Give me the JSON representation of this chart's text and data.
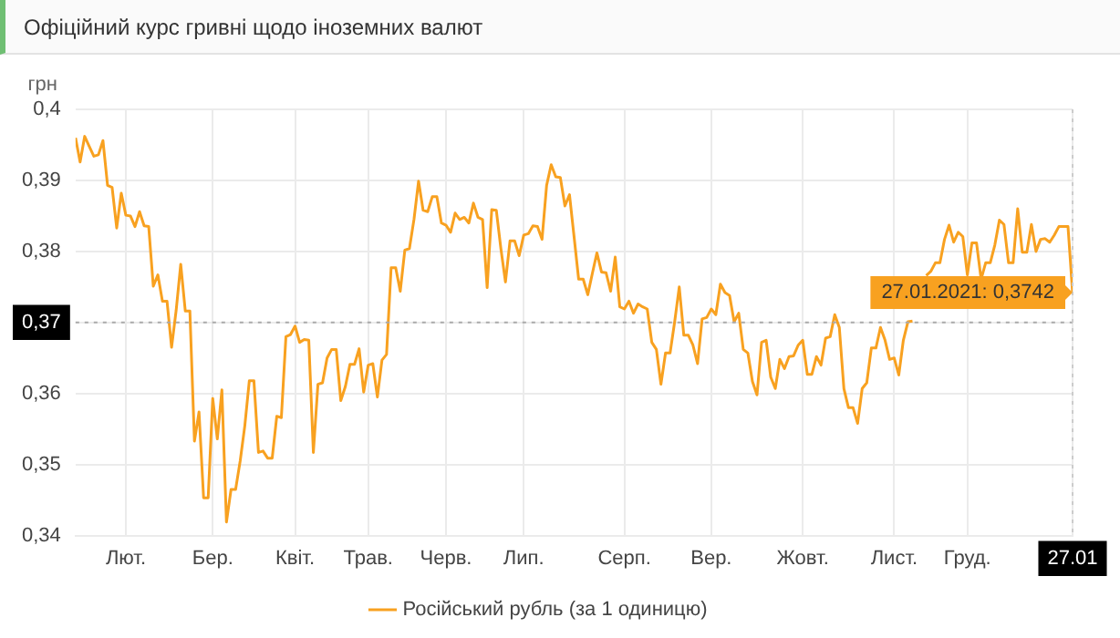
{
  "chart_data": {
    "type": "line",
    "title": "Офіційний курс гривні щодо іноземних валют",
    "ylabel": "грн",
    "categories": [
      null,
      null,
      null,
      null,
      null,
      null,
      null,
      null,
      null,
      null,
      null,
      "Лют.",
      null,
      null,
      null,
      null,
      null,
      null,
      null,
      null,
      null,
      null,
      null,
      null,
      null,
      null,
      null,
      null,
      null,
      null,
      "Бер.",
      null,
      null,
      null,
      null,
      null,
      null,
      null,
      null,
      null,
      null,
      null,
      null,
      null,
      null,
      null,
      null,
      null,
      "Квіт.",
      null,
      null,
      null,
      null,
      null,
      null,
      null,
      null,
      null,
      null,
      null,
      null,
      null,
      null,
      null,
      "Трав.",
      null,
      null,
      null,
      null,
      null,
      null,
      null,
      null,
      null,
      null,
      null,
      null,
      null,
      null,
      null,
      null,
      "Черв.",
      null,
      null,
      null,
      null,
      null,
      null,
      null,
      null,
      null,
      null,
      null,
      null,
      null,
      null,
      null,
      null,
      "Лип.",
      null,
      null,
      null,
      null,
      null,
      null,
      null,
      null,
      null,
      null,
      null,
      null,
      null,
      null,
      null,
      null,
      null,
      null,
      null,
      null,
      null,
      "Серп.",
      null,
      null,
      null,
      null,
      null,
      null,
      null,
      null,
      null,
      null,
      null,
      null,
      null,
      null,
      null,
      null,
      null,
      null,
      "Вер.",
      null,
      null,
      null,
      null,
      null,
      null,
      null,
      null,
      null,
      null,
      null,
      null,
      null,
      null,
      null,
      null,
      null,
      null,
      null,
      "Жовт.",
      null,
      null,
      null,
      null,
      null,
      null,
      null,
      null,
      null,
      null,
      null,
      null,
      null,
      null,
      null,
      null,
      null,
      null,
      null,
      "Лист.",
      null,
      null,
      null,
      null,
      null,
      null,
      null,
      null,
      null,
      null,
      null,
      null,
      null,
      null,
      null,
      "Груд.",
      null,
      null,
      null,
      null,
      null,
      null,
      null,
      null,
      null,
      null,
      null,
      null,
      null,
      null,
      null,
      null,
      null,
      null,
      null,
      null,
      null,
      null,
      "27.01"
    ],
    "series": [
      {
        "name": "Російський рубль (за 1 одиницю)",
        "color": "#f8a120",
        "values": [
          0.396,
          0.3926,
          0.3962,
          0.3948,
          0.3934,
          0.3936,
          0.3956,
          0.3893,
          0.389,
          0.3833,
          0.3882,
          0.3851,
          0.385,
          0.3835,
          0.3856,
          0.3836,
          0.3835,
          0.3751,
          0.3767,
          0.373,
          0.373,
          0.3665,
          0.3717,
          0.3782,
          0.3716,
          0.3716,
          0.3533,
          0.3574,
          0.3453,
          0.3453,
          0.3593,
          0.3536,
          0.3605,
          0.3419,
          0.3465,
          0.3465,
          0.3505,
          0.3554,
          0.3618,
          0.3618,
          0.3517,
          0.3519,
          0.3509,
          0.3509,
          0.3568,
          0.3566,
          0.368,
          0.3683,
          0.3695,
          0.3672,
          0.3676,
          0.3675,
          0.3517,
          0.3613,
          0.3615,
          0.365,
          0.3662,
          0.3662,
          0.359,
          0.361,
          0.3641,
          0.3641,
          0.3663,
          0.3602,
          0.364,
          0.3642,
          0.3595,
          0.3647,
          0.3655,
          0.3777,
          0.3777,
          0.3744,
          0.3802,
          0.3804,
          0.3845,
          0.3899,
          0.3858,
          0.3856,
          0.3877,
          0.3877,
          0.384,
          0.3837,
          0.3827,
          0.3854,
          0.3845,
          0.3848,
          0.384,
          0.3868,
          0.3848,
          0.3845,
          0.3749,
          0.3859,
          0.3858,
          0.3804,
          0.3757,
          0.3815,
          0.3815,
          0.3794,
          0.3823,
          0.3825,
          0.3836,
          0.3835,
          0.3817,
          0.3893,
          0.3922,
          0.3905,
          0.3904,
          0.3864,
          0.388,
          0.3821,
          0.3761,
          0.3761,
          0.3739,
          0.3769,
          0.3798,
          0.3771,
          0.377,
          0.3744,
          0.3792,
          0.3722,
          0.3719,
          0.373,
          0.3713,
          0.3726,
          0.3722,
          0.3719,
          0.3672,
          0.3662,
          0.3613,
          0.3657,
          0.3657,
          0.3701,
          0.375,
          0.3682,
          0.3682,
          0.3668,
          0.3642,
          0.3705,
          0.3707,
          0.3719,
          0.3711,
          0.3754,
          0.3742,
          0.3738,
          0.3701,
          0.3713,
          0.3662,
          0.3657,
          0.3617,
          0.3598,
          0.3672,
          0.3675,
          0.3623,
          0.3607,
          0.3648,
          0.3635,
          0.3652,
          0.3653,
          0.3668,
          0.3675,
          0.3627,
          0.3627,
          0.3652,
          0.364,
          0.3678,
          0.368,
          0.3711,
          0.3693,
          0.3607,
          0.358,
          0.358,
          0.3558,
          0.3607,
          0.3615,
          0.3664,
          0.3664,
          0.3693,
          0.3675,
          0.3648,
          0.365,
          0.3626,
          0.3675,
          0.3701,
          0.3702,
          null,
          null,
          0.3766,
          0.3772,
          0.3784,
          0.3784,
          0.3817,
          0.3837,
          0.3813,
          0.3827,
          0.3821,
          0.3767,
          0.3812,
          0.3812,
          0.3761,
          0.3784,
          0.3784,
          0.3809,
          0.3844,
          0.3838,
          0.3784,
          0.3784,
          0.386,
          0.3799,
          0.3799,
          0.3838,
          0.38,
          0.3817,
          0.3818,
          0.3813,
          0.3823,
          0.3835,
          0.3835,
          0.3835,
          0.3742
        ]
      }
    ],
    "ylim": [
      0.34,
      0.4
    ],
    "yticks": [
      {
        "value": 0.34,
        "label": "0,34"
      },
      {
        "value": 0.35,
        "label": "0,35"
      },
      {
        "value": 0.36,
        "label": "0,36"
      },
      {
        "value": 0.37,
        "label": "0,37"
      },
      {
        "value": 0.38,
        "label": "0,38"
      },
      {
        "value": 0.39,
        "label": "0,39"
      },
      {
        "value": 0.4,
        "label": "0,4"
      }
    ],
    "ref_lines": [
      {
        "axis": "y",
        "value": 0.37,
        "color": "#aaaaaa",
        "line_style": "dotted"
      },
      {
        "axis": "x",
        "value": "27.01",
        "color": "#cccccc",
        "line_style": "dotted"
      }
    ],
    "annotations": [
      {
        "text": "27.01.2021: 0,3742",
        "x": "27.01",
        "y": 0.3742
      }
    ],
    "grid": true,
    "legend": "bottom",
    "marker": "none",
    "line_style": "solid"
  }
}
